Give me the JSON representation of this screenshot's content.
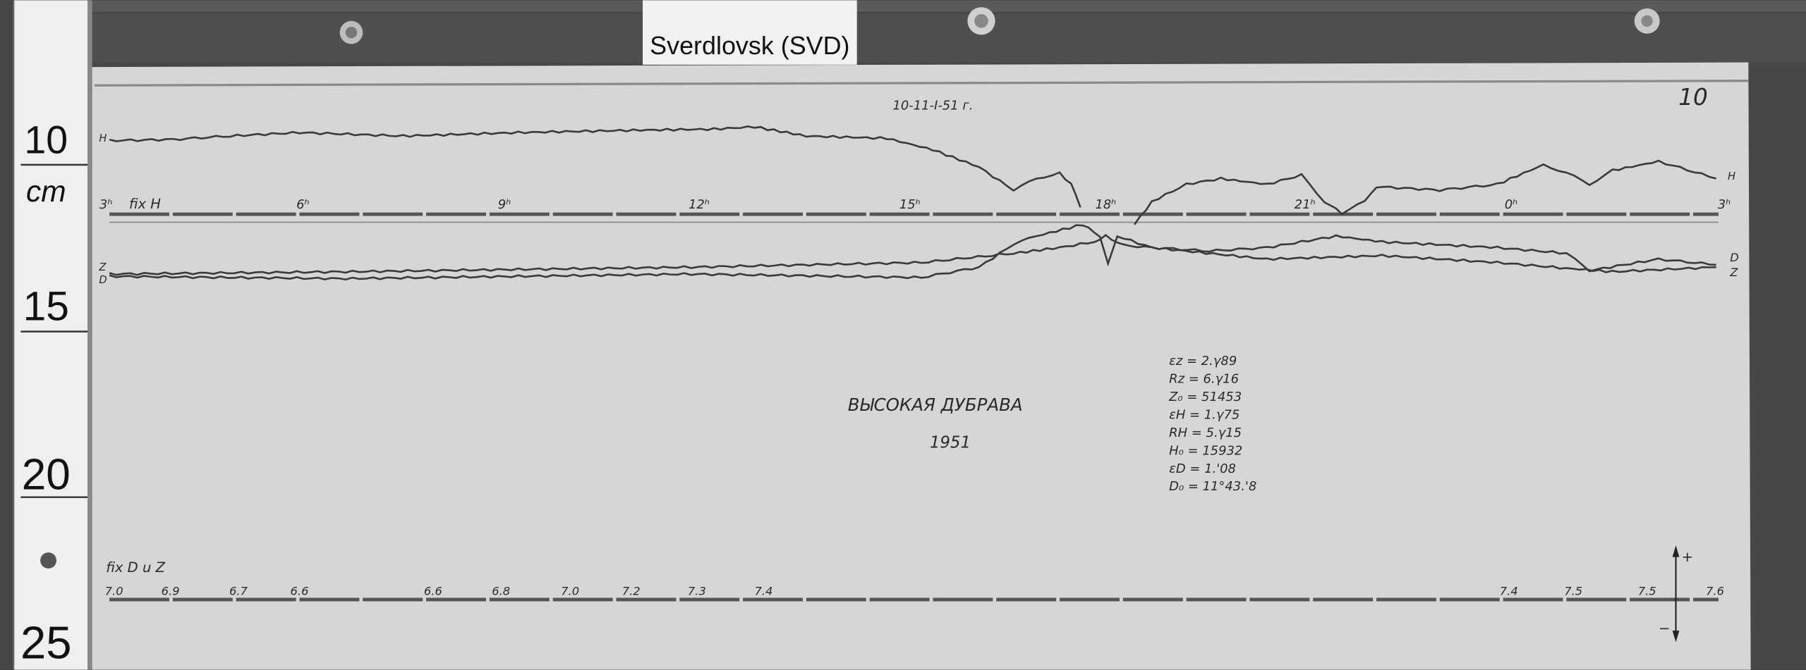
{
  "station_tag": "Sverdlovsk (SVD)",
  "ruler": {
    "labels": [
      "10",
      "cm",
      "15",
      "20",
      "25"
    ]
  },
  "sheet": {
    "page_number": "10",
    "date": "10-11-I-51 г.",
    "title": "ВЫСОКАЯ ДУБРАВА",
    "year": "1951",
    "h_trace_label": "H",
    "h_baseline_label": "fix H",
    "z_label": "Z",
    "d_label": "D",
    "hour_marks": [
      "3ʰ",
      "6ʰ",
      "9ʰ",
      "12ʰ",
      "15ʰ",
      "18ʰ",
      "21ʰ",
      "0ʰ",
      "3ʰ"
    ],
    "zd_baseline_label": "fix D u Z",
    "temperature_marks": [
      "7.0",
      "6.9",
      "6.7",
      "6.6",
      "6.6",
      "6.8",
      "7.0",
      "7.2",
      "7.3",
      "7.4",
      "7.4",
      "7.5",
      "7.5",
      "7.6"
    ],
    "polarity": {
      "plus": "+",
      "minus": "−"
    },
    "constants": [
      "εz = 2.γ89",
      "Rz = 6.γ16",
      "Z₀ = 51453",
      "εH = 1.γ75",
      "RH = 5.γ15",
      "H₀ = 15932",
      "εD = 1.'08",
      "D₀ = 11°43.'8"
    ]
  }
}
